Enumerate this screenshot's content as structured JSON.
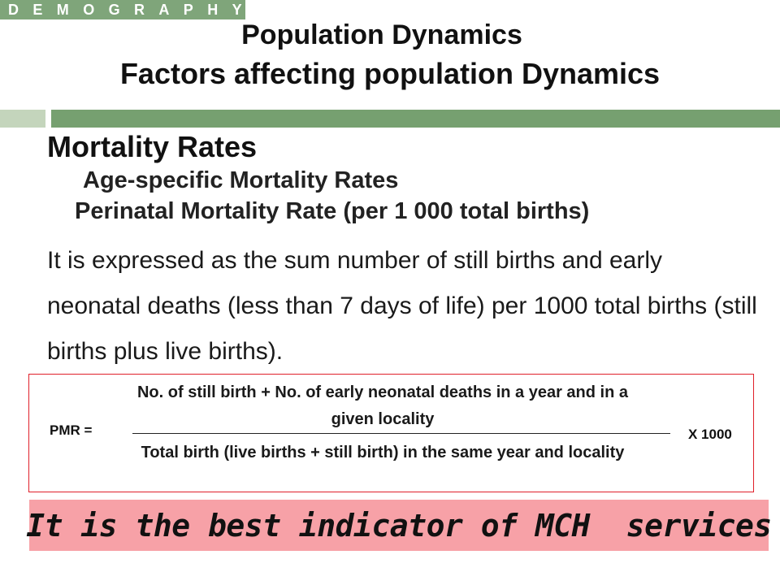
{
  "badge": {
    "text": "DEMOGRAPHY"
  },
  "title": {
    "line1": "Population Dynamics",
    "line2": "Factors affecting population Dynamics"
  },
  "colors": {
    "accent_green": "#76a070",
    "accent_light": "#c4d5bc",
    "box_border": "#e0202a",
    "callout_bg": "#f7a1a7"
  },
  "content": {
    "heading1": "Mortality Rates",
    "heading2": "Age-specific Mortality Rates",
    "heading3": "Perinatal Mortality Rate (per 1 000 total births)",
    "paragraph": "It is expressed as the sum number of still births and early neonatal deaths (less than 7 days of life) per 1000 total births (still births plus live births)."
  },
  "formula": {
    "label": "PMR =",
    "numerator": "No. of still birth + No. of early neonatal deaths in a year and  in a given locality",
    "denominator": "Total birth (live births + still birth) in the same year and locality",
    "multiplier": "X 1000"
  },
  "callout": {
    "text": "It is the best indicator of MCH  services"
  }
}
